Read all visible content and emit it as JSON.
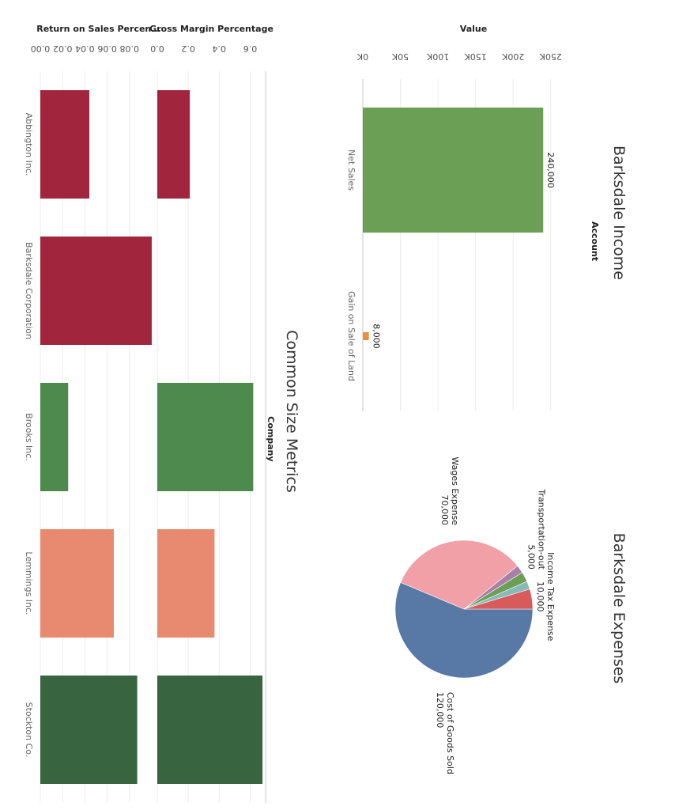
{
  "chart_data": [
    {
      "type": "bar",
      "title": "Barksdale Income",
      "xlabel": "Account",
      "ylabel": "Value",
      "categories": [
        "Net Sales",
        "Gain on Sale of Land"
      ],
      "values": [
        240000,
        8000
      ],
      "data_labels": [
        "240,000",
        "8,000"
      ],
      "colors": [
        "#6a9f55",
        "#e8923e"
      ],
      "ylim": [
        0,
        265000
      ],
      "yticks": [
        0,
        50000,
        100000,
        150000,
        200000,
        250000
      ],
      "ytick_labels": [
        "0K",
        "50K",
        "100K",
        "150K",
        "200K",
        "250K"
      ],
      "grid": true
    },
    {
      "type": "pie",
      "title": "Barksdale Expenses",
      "slices": [
        {
          "name": "Cost of Goods Sold",
          "value": 120000,
          "label": "120,000",
          "color": "#5878a5"
        },
        {
          "name": "Wages Expense",
          "value": 70000,
          "label": "70,000",
          "color": "#f0a0a6"
        },
        {
          "name": "",
          "value": 4000,
          "label": "",
          "color": "#a97fa8"
        },
        {
          "name": "Transportation-out",
          "value": 5000,
          "label": "5,000",
          "color": "#6a9f55"
        },
        {
          "name": "",
          "value": 4000,
          "label": "",
          "color": "#88b8b8"
        },
        {
          "name": "Income Tax Expense",
          "value": 10000,
          "label": "10,000",
          "color": "#d85b5b"
        }
      ]
    },
    {
      "type": "bar",
      "title": "Common Size Metrics",
      "xlabel": "Company",
      "categories": [
        "Abbington Inc.",
        "Barksdale Corporation",
        "Brooks Inc.",
        "Lemmings Inc.",
        "Stockton Co."
      ],
      "colors": [
        "#a1263d",
        "#a1263d",
        "#4e8a4e",
        "#e88a70",
        "#386540"
      ],
      "series": [
        {
          "name": "Return on Sales Percen...",
          "values": [
            0.044,
            0.1,
            0.025,
            0.066,
            0.087
          ],
          "ylim": [
            0,
            0.105
          ],
          "yticks": [
            0,
            0.02,
            0.04,
            0.06,
            0.08
          ],
          "ytick_labels": [
            "0.00",
            "0.02",
            "0.04",
            "0.06",
            "0.08"
          ]
        },
        {
          "name": "Gross Margin Percentage",
          "values": [
            0.21,
            0.0,
            0.62,
            0.37,
            0.68
          ],
          "ylim": [
            0,
            0.7
          ],
          "yticks": [
            0,
            0.2,
            0.4,
            0.6
          ],
          "ytick_labels": [
            "0.0",
            "0.2",
            "0.4",
            "0.6"
          ]
        }
      ],
      "grid": true
    }
  ]
}
